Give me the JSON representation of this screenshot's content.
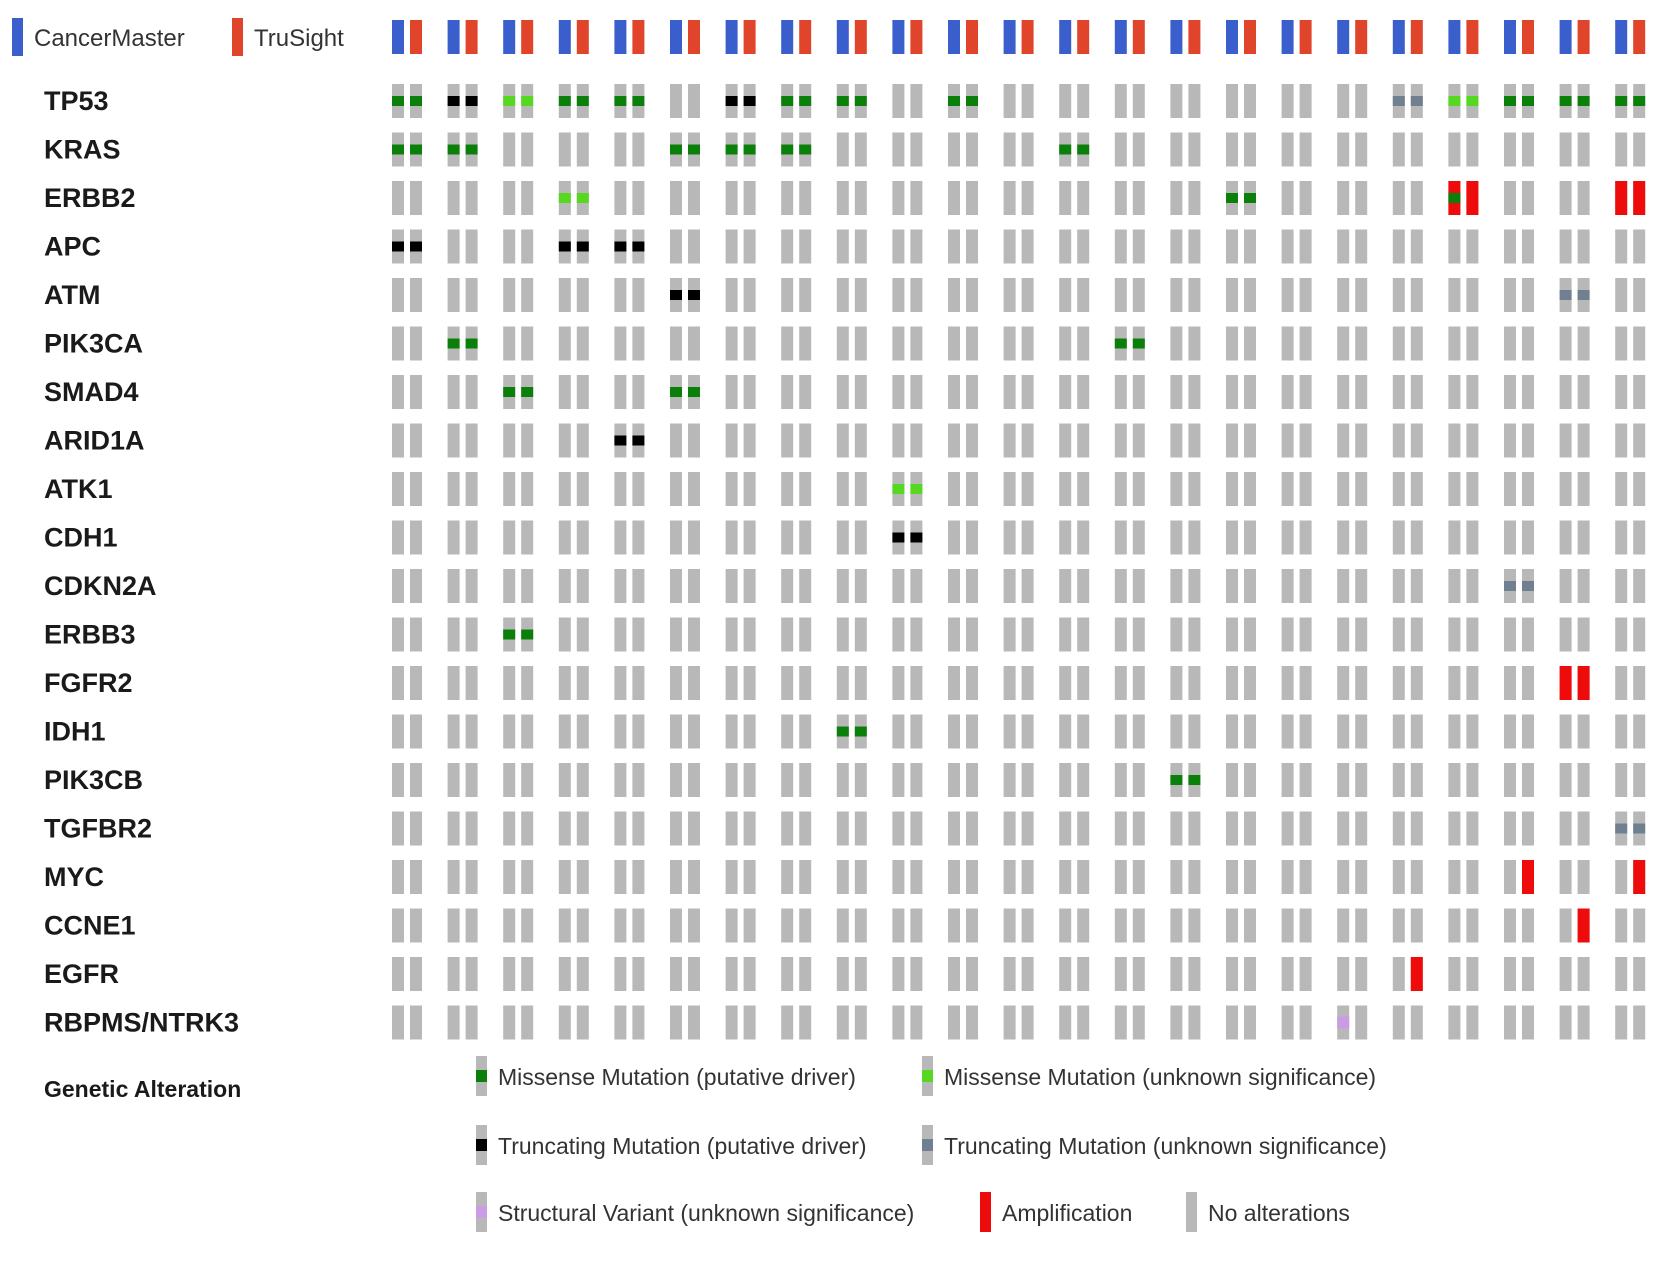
{
  "sample_legend": [
    {
      "label": "CancerMaster",
      "color": "#3a5fcd"
    },
    {
      "label": "TruSight",
      "color": "#e0442b"
    }
  ],
  "genes": [
    "TP53",
    "KRAS",
    "ERBB2",
    "APC",
    "ATM",
    "PIK3CA",
    "SMAD4",
    "ARID1A",
    "ATK1",
    "CDH1",
    "CDKN2A",
    "ERBB3",
    "FGFR2",
    "IDH1",
    "PIK3CB",
    "TGFBR2",
    "MYC",
    "CCNE1",
    "EGFR",
    "RBPMS/NTRK3"
  ],
  "sample_count": 23,
  "colors": {
    "none": "#b8b8b8",
    "missense_driver": "#0a7f0a",
    "missense_unknown": "#56d821",
    "truncating_driver": "#000000",
    "truncating_unknown": "#708090",
    "structural_unknown": "#c99ce3",
    "amplification": "#ee0b0b"
  },
  "legend_title": "Genetic Alteration",
  "legend_items": [
    {
      "key": "missense_driver",
      "label": "Missense Mutation (putative driver)"
    },
    {
      "key": "missense_unknown",
      "label": "Missense Mutation (unknown significance)"
    },
    {
      "key": "truncating_driver",
      "label": "Truncating Mutation (putative driver)"
    },
    {
      "key": "truncating_unknown",
      "label": "Truncating Mutation (unknown significance)"
    },
    {
      "key": "structural_unknown",
      "label": "Structural Variant (unknown significance)"
    },
    {
      "key": "amplification",
      "label": "Amplification"
    },
    {
      "key": "none",
      "label": "No alterations"
    }
  ],
  "alterations": [
    {
      "gene": 0,
      "sample": 0,
      "type": "missense_driver",
      "platforms": "both"
    },
    {
      "gene": 0,
      "sample": 1,
      "type": "truncating_driver",
      "platforms": "both"
    },
    {
      "gene": 0,
      "sample": 2,
      "type": "missense_unknown",
      "platforms": "both"
    },
    {
      "gene": 0,
      "sample": 3,
      "type": "missense_driver",
      "platforms": "both"
    },
    {
      "gene": 0,
      "sample": 4,
      "type": "missense_driver",
      "platforms": "both"
    },
    {
      "gene": 0,
      "sample": 6,
      "type": "truncating_driver",
      "platforms": "both"
    },
    {
      "gene": 0,
      "sample": 7,
      "type": "missense_driver",
      "platforms": "both"
    },
    {
      "gene": 0,
      "sample": 8,
      "type": "missense_driver",
      "platforms": "both"
    },
    {
      "gene": 0,
      "sample": 10,
      "type": "missense_driver",
      "platforms": "both"
    },
    {
      "gene": 0,
      "sample": 18,
      "type": "truncating_unknown",
      "platforms": "both"
    },
    {
      "gene": 0,
      "sample": 19,
      "type": "missense_unknown",
      "platforms": "both"
    },
    {
      "gene": 0,
      "sample": 20,
      "type": "missense_driver",
      "platforms": "both"
    },
    {
      "gene": 0,
      "sample": 21,
      "type": "missense_driver",
      "platforms": "both"
    },
    {
      "gene": 0,
      "sample": 22,
      "type": "missense_driver",
      "platforms": "both"
    },
    {
      "gene": 1,
      "sample": 0,
      "type": "missense_driver",
      "platforms": "both"
    },
    {
      "gene": 1,
      "sample": 1,
      "type": "missense_driver",
      "platforms": "both"
    },
    {
      "gene": 1,
      "sample": 5,
      "type": "missense_driver",
      "platforms": "both"
    },
    {
      "gene": 1,
      "sample": 6,
      "type": "missense_driver",
      "platforms": "both"
    },
    {
      "gene": 1,
      "sample": 7,
      "type": "missense_driver",
      "platforms": "both"
    },
    {
      "gene": 1,
      "sample": 12,
      "type": "missense_driver",
      "platforms": "both"
    },
    {
      "gene": 2,
      "sample": 3,
      "type": "missense_unknown",
      "platforms": "both"
    },
    {
      "gene": 2,
      "sample": 15,
      "type": "missense_driver",
      "platforms": "both"
    },
    {
      "gene": 2,
      "sample": 19,
      "type": "amplification",
      "platforms": "both"
    },
    {
      "gene": 2,
      "sample": 19,
      "type": "missense_driver",
      "platforms": "cm"
    },
    {
      "gene": 2,
      "sample": 22,
      "type": "amplification",
      "platforms": "both"
    },
    {
      "gene": 3,
      "sample": 0,
      "type": "truncating_driver",
      "platforms": "both"
    },
    {
      "gene": 3,
      "sample": 3,
      "type": "truncating_driver",
      "platforms": "both"
    },
    {
      "gene": 3,
      "sample": 4,
      "type": "truncating_driver",
      "platforms": "both"
    },
    {
      "gene": 4,
      "sample": 5,
      "type": "truncating_driver",
      "platforms": "both"
    },
    {
      "gene": 4,
      "sample": 21,
      "type": "truncating_unknown",
      "platforms": "both"
    },
    {
      "gene": 5,
      "sample": 1,
      "type": "missense_driver",
      "platforms": "both"
    },
    {
      "gene": 5,
      "sample": 13,
      "type": "missense_driver",
      "platforms": "both"
    },
    {
      "gene": 6,
      "sample": 2,
      "type": "missense_driver",
      "platforms": "both"
    },
    {
      "gene": 6,
      "sample": 5,
      "type": "missense_driver",
      "platforms": "both"
    },
    {
      "gene": 7,
      "sample": 4,
      "type": "truncating_driver",
      "platforms": "both"
    },
    {
      "gene": 8,
      "sample": 9,
      "type": "missense_unknown",
      "platforms": "both"
    },
    {
      "gene": 9,
      "sample": 9,
      "type": "truncating_driver",
      "platforms": "both"
    },
    {
      "gene": 10,
      "sample": 20,
      "type": "truncating_unknown",
      "platforms": "both"
    },
    {
      "gene": 11,
      "sample": 2,
      "type": "missense_driver",
      "platforms": "both"
    },
    {
      "gene": 12,
      "sample": 21,
      "type": "amplification",
      "platforms": "both"
    },
    {
      "gene": 13,
      "sample": 8,
      "type": "missense_driver",
      "platforms": "both"
    },
    {
      "gene": 14,
      "sample": 14,
      "type": "missense_driver",
      "platforms": "both"
    },
    {
      "gene": 15,
      "sample": 22,
      "type": "truncating_unknown",
      "platforms": "both"
    },
    {
      "gene": 16,
      "sample": 20,
      "type": "amplification",
      "platforms": "ts"
    },
    {
      "gene": 16,
      "sample": 22,
      "type": "amplification",
      "platforms": "ts"
    },
    {
      "gene": 17,
      "sample": 21,
      "type": "amplification",
      "platforms": "ts"
    },
    {
      "gene": 18,
      "sample": 18,
      "type": "amplification",
      "platforms": "ts"
    },
    {
      "gene": 19,
      "sample": 17,
      "type": "structural_unknown",
      "platforms": "cm"
    }
  ]
}
